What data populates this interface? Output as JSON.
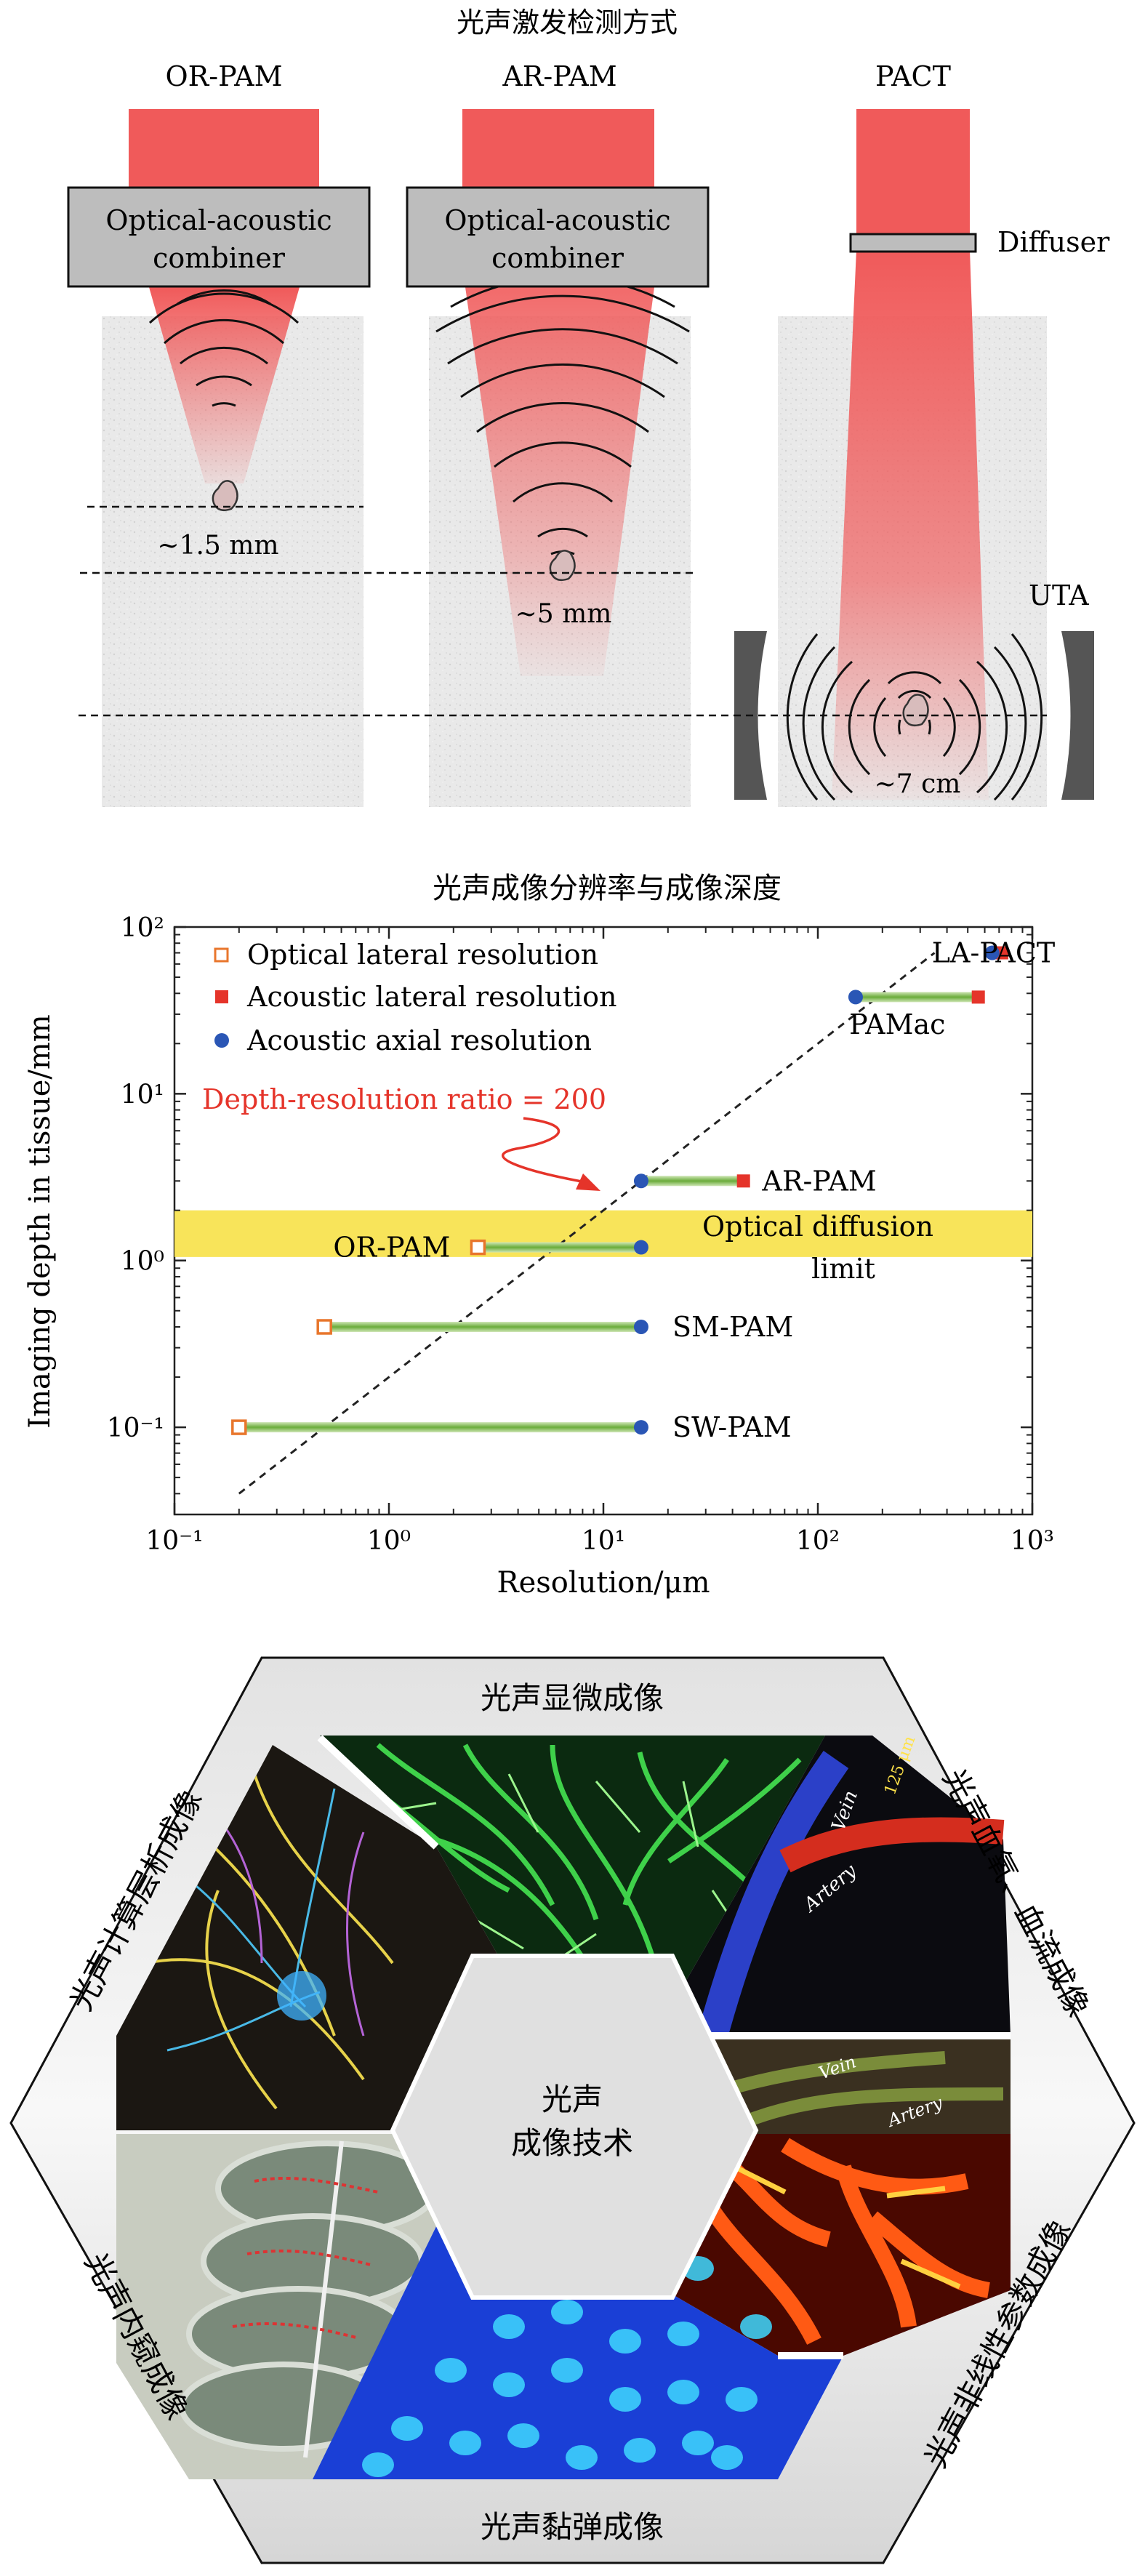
{
  "panel_a": {
    "title": "光声激发检测方式",
    "or_pam": {
      "label": "OR-PAM",
      "combiner_line1": "Optical-acoustic",
      "combiner_line2": "combiner",
      "depth": "~1.5 mm"
    },
    "ar_pam": {
      "label": "AR-PAM",
      "combiner_line1": "Optical-acoustic",
      "combiner_line2": "combiner",
      "depth": "~5 mm"
    },
    "pact": {
      "label": "PACT",
      "diffuser": "Diffuser",
      "uta": "UTA",
      "depth": "~7 cm"
    },
    "colors": {
      "beam": "#f05a5a",
      "combiner": "#bdbdbd",
      "tissue": "#e9e9e9",
      "transducer": "#555555"
    }
  },
  "panel_b": {
    "title": "光声成像分辨率与成像深度",
    "legend": {
      "optical_lateral": "Optical lateral resolution",
      "acoustic_lateral": "Acoustic lateral resolution",
      "acoustic_axial": "Acoustic axial resolution"
    },
    "ratio_annotation": "Depth-resolution ratio = 200",
    "optical_limit_line1": "Optical diffusion",
    "optical_limit_line2": "limit",
    "colors": {
      "optical": "#e8762c",
      "acoustic_lateral": "#e5342a",
      "axial": "#2a56b5",
      "band": "#f8e45a",
      "ratio": "#e5342a",
      "link": "#7bb843"
    }
  },
  "chart_data": {
    "type": "scatter",
    "title": "光声成像分辨率与成像深度",
    "xlabel": "Resolution/μm",
    "ylabel": "Imaging depth in tissue/mm",
    "xscale": "log",
    "yscale": "log",
    "xlim": [
      0.1,
      1000
    ],
    "ylim": [
      0.03,
      100
    ],
    "x_ticks": [
      "10⁻¹",
      "10⁰",
      "10¹",
      "10²",
      "10³"
    ],
    "y_ticks": [
      "10⁻¹",
      "10⁰",
      "10¹",
      "10²"
    ],
    "optical_diffusion_band": [
      1.05,
      2.0
    ],
    "ratio_line": {
      "ratio": 200,
      "x_range": [
        0.2,
        350
      ]
    },
    "series": [
      {
        "name": "Optical lateral resolution",
        "points": [
          {
            "x": 2.6,
            "y": 1.2
          },
          {
            "x": 0.5,
            "y": 0.4
          },
          {
            "x": 0.2,
            "y": 0.1
          }
        ]
      },
      {
        "name": "Acoustic lateral resolution",
        "points": [
          {
            "x": 45,
            "y": 3.0
          },
          {
            "x": 560,
            "y": 38
          },
          {
            "x": 720,
            "y": 70
          }
        ]
      },
      {
        "name": "Acoustic axial resolution",
        "points": [
          {
            "x": 15,
            "y": 3.0
          },
          {
            "x": 15,
            "y": 1.2
          },
          {
            "x": 15,
            "y": 0.4
          },
          {
            "x": 15,
            "y": 0.1
          },
          {
            "x": 150,
            "y": 38
          },
          {
            "x": 650,
            "y": 70
          }
        ]
      }
    ],
    "segments": [
      {
        "x1": 15,
        "x2": 45,
        "y": 3.0
      },
      {
        "x1": 2.6,
        "x2": 15,
        "y": 1.2
      },
      {
        "x1": 0.5,
        "x2": 15,
        "y": 0.4
      },
      {
        "x1": 0.2,
        "x2": 15,
        "y": 0.1
      },
      {
        "x1": 150,
        "x2": 560,
        "y": 38
      }
    ],
    "annotations": [
      {
        "text": "LA-PACT",
        "x": 340,
        "y": 70
      },
      {
        "text": "PAMac",
        "x": 140,
        "y": 26
      },
      {
        "text": "AR-PAM",
        "x": 55,
        "y": 3.0
      },
      {
        "text": "OR-PAM",
        "x": 0.55,
        "y": 1.2
      },
      {
        "text": "SM-PAM",
        "x": 21,
        "y": 0.4
      },
      {
        "text": "SW-PAM",
        "x": 21,
        "y": 0.1
      }
    ]
  },
  "panel_c": {
    "center_line1": "光声",
    "center_line2": "成像技术",
    "sections": [
      "光声显微成像",
      "光声血氧、血流成像",
      "光声非线性参数成像",
      "光声黏弹成像",
      "光声内窥成像",
      "光声计算层析成像"
    ],
    "image_labels": [
      "Vein",
      "Artery",
      "Vein",
      "Artery",
      "125 μm"
    ]
  }
}
